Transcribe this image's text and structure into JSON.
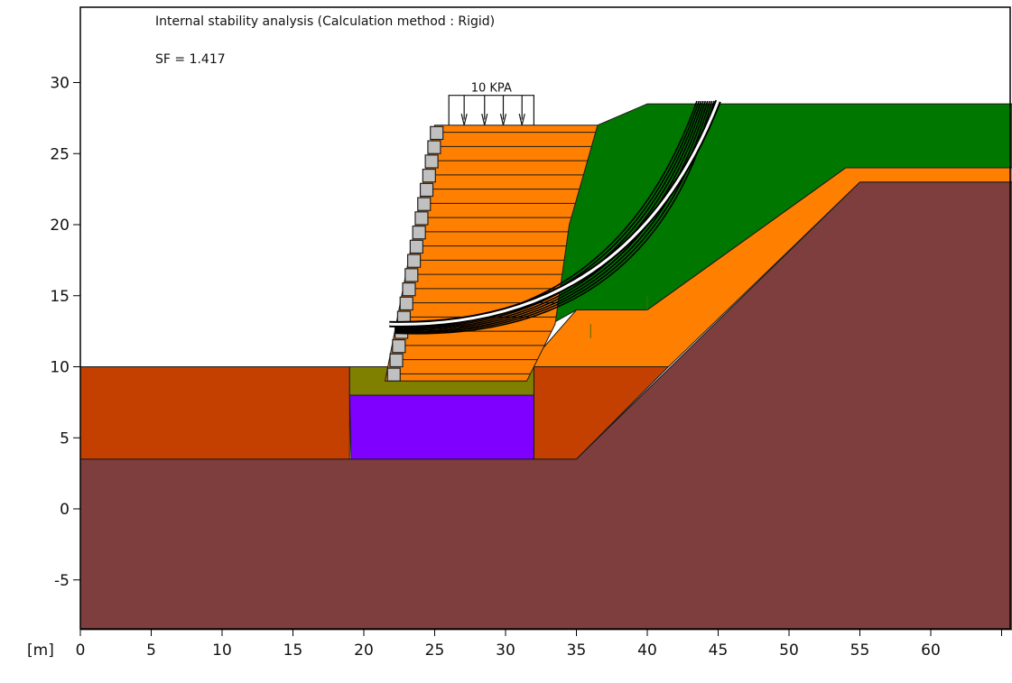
{
  "header": {
    "title": "Internal stability analysis (Calculation method : Rigid)",
    "sf_text": "SF = 1.417"
  },
  "load_label": "10 KPA",
  "axis": {
    "unit_label": "[m]",
    "x_ticks": [
      "0",
      "5",
      "10",
      "15",
      "20",
      "25",
      "30",
      "35",
      "40",
      "45",
      "50",
      "55",
      "60"
    ],
    "y_ticks": [
      "30",
      "25",
      "20",
      "15",
      "10",
      "5",
      "0",
      "-5"
    ]
  },
  "colors": {
    "background": "#ffffff",
    "frame": "#000000",
    "foundation_soil": "#7f3e3e",
    "embankment_soil": "#c44000",
    "orange_layer": "#ff8000",
    "backfill_green": "#007800",
    "leveling_pad": "#808000",
    "purple_block": "#8000ff",
    "facing_unit": "#c0c0c0",
    "slip_surface": "#ffffff"
  },
  "icons": {
    "load_arrow": "down-arrow-icon"
  },
  "diagram": {
    "x_range": [
      0,
      66
    ],
    "y_range": [
      -8.5,
      35.5
    ],
    "facing": {
      "bottom": [
        21.8,
        9.0
      ],
      "top": [
        25.0,
        27.0
      ]
    },
    "load": {
      "magnitude_kpa": 10,
      "x_from": 26.0,
      "x_to": 32.0
    }
  }
}
